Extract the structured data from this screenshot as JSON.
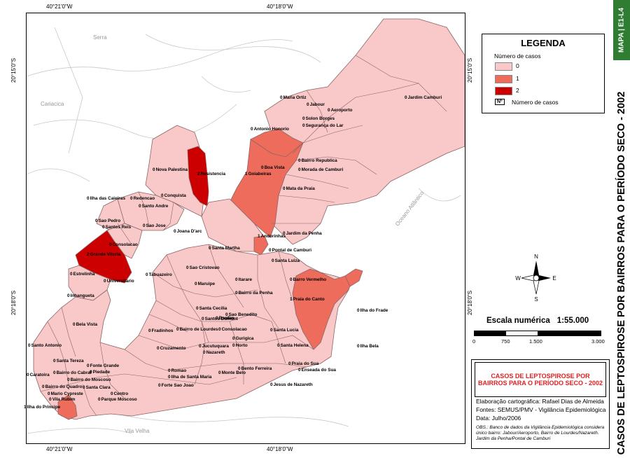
{
  "coords": {
    "top_left": "40°21'0\"W",
    "top_right": "40°18'0\"W",
    "bottom_left": "40°21'0\"W",
    "bottom_right": "40°18'0\"W",
    "left_top": "20°15'0\"S",
    "left_bottom": "20°18'0\"S",
    "right_top": "20°15'0\"S",
    "right_bottom": "20°18'0\"S"
  },
  "places": {
    "serra": "Serra",
    "cariacica": "Cariacica",
    "oceano": "Oceano Atlântico",
    "vila_velha": "Vila Velha"
  },
  "colors": {
    "zero": "#f9c9c9",
    "one": "#ee6c5c",
    "two": "#cc0000",
    "boundary": "#8a6464",
    "water": "#ffffff",
    "side_green": "#2e7d32"
  },
  "legend": {
    "title": "LEGENDA",
    "subtitle": "Número de casos",
    "items": [
      {
        "label": "0",
        "color": "#f9c9c9"
      },
      {
        "label": "1",
        "color": "#ee6c5c"
      },
      {
        "label": "2",
        "color": "#cc0000"
      }
    ],
    "box_symbol": "Nº",
    "box_label": "Número de casos"
  },
  "sidebar": {
    "code": "MAPA | E1-L4",
    "title": "CASOS DE LEPTOSPIROSE POR BAIRROS  PARA O PERÍODO SECO  - 2002"
  },
  "scale": {
    "label": "Escala numérica",
    "value": "1:55.000",
    "ticks": [
      "0",
      "750",
      "1.500",
      "3.000"
    ]
  },
  "title_box": {
    "line1": "CASOS DE LEPTOSPIROSE POR",
    "line2": "BAIRROS PARA O PERÍODO SECO - 2002",
    "credit": "Elaboração cartográfica: Rafael Dias de Almeida",
    "sources": "Fontes: SEMUS/PMV - Vigilância Epidemiológica",
    "date": "Data: Julho/2006",
    "obs": "OBS.: Banco de dados da Vigilância Epidemiológica considera único bairro: Jabour/Aeroporto, Bairro de Lourdes/Nazareth. Jardim da Penha/Pontal de Camburi"
  },
  "neighborhoods": [
    {
      "name": "Maria Ortiz",
      "count": "0"
    },
    {
      "name": "Jabour",
      "count": "0"
    },
    {
      "name": "Aeroporto",
      "count": "0"
    },
    {
      "name": "Jardim Camburi",
      "count": "0"
    },
    {
      "name": "Solon Borges",
      "count": "0"
    },
    {
      "name": "Segurança do Lar",
      "count": "0"
    },
    {
      "name": "Antonio Honorio",
      "count": "0"
    },
    {
      "name": "Bairro Republica",
      "count": "0"
    },
    {
      "name": "Boa Vista",
      "count": "0"
    },
    {
      "name": "Morada de Camburi",
      "count": "0"
    },
    {
      "name": "Goiabeiras",
      "count": "1"
    },
    {
      "name": "Resistencia",
      "count": "2"
    },
    {
      "name": "Nova Palestina",
      "count": "0"
    },
    {
      "name": "Mata da Praia",
      "count": "0"
    },
    {
      "name": "Ilha das Caieiras",
      "count": "0"
    },
    {
      "name": "Redencao",
      "count": "0"
    },
    {
      "name": "Conquista",
      "count": "0"
    },
    {
      "name": "Santo Andre",
      "count": "0"
    },
    {
      "name": "Sao Pedro",
      "count": "0"
    },
    {
      "name": "Santos Reis",
      "count": "0"
    },
    {
      "name": "Sao Jose",
      "count": "0"
    },
    {
      "name": "Joana D'arc",
      "count": "0"
    },
    {
      "name": "Jardim da Penha",
      "count": "0"
    },
    {
      "name": "Andorinhas",
      "count": "1"
    },
    {
      "name": "Pontal de Camburi",
      "count": "0"
    },
    {
      "name": "Santa Martha",
      "count": "0"
    },
    {
      "name": "Grande Vitoria",
      "count": "2"
    },
    {
      "name": "Consolacao",
      "count": "0"
    },
    {
      "name": "Santa Luiza",
      "count": "0"
    },
    {
      "name": "Estrelinha",
      "count": "0"
    },
    {
      "name": "Universitario",
      "count": "0"
    },
    {
      "name": "Sao Cristovao",
      "count": "0"
    },
    {
      "name": "Tabuazeiro",
      "count": "0"
    },
    {
      "name": "Maruipe",
      "count": "0"
    },
    {
      "name": "Itarare",
      "count": "0"
    },
    {
      "name": "Barro Vermelho",
      "count": "0"
    },
    {
      "name": "Bairro da Penha",
      "count": "0"
    },
    {
      "name": "Inhangueta",
      "count": "0"
    },
    {
      "name": "Praia do Canto",
      "count": "1"
    },
    {
      "name": "Ilha do Frade",
      "count": "0"
    },
    {
      "name": "Santa Cecilia",
      "count": "0"
    },
    {
      "name": "Bonfim",
      "count": "0"
    },
    {
      "name": "Sao Benedito",
      "count": "0"
    },
    {
      "name": "Santos Dumont",
      "count": "0"
    },
    {
      "name": "Bela Vista",
      "count": "0"
    },
    {
      "name": "Fradinhos",
      "count": "0"
    },
    {
      "name": "Bairro de Lourdes",
      "count": "0"
    },
    {
      "name": "Consolacao",
      "count": "0"
    },
    {
      "name": "Gurigica",
      "count": "0"
    },
    {
      "name": "Santa Lucia",
      "count": "0"
    },
    {
      "name": "Santo Antonio",
      "count": "0"
    },
    {
      "name": "Cruzamento",
      "count": "0"
    },
    {
      "name": "Jucutuquara",
      "count": "0"
    },
    {
      "name": "Horto",
      "count": "0"
    },
    {
      "name": "Nazareth",
      "count": "0"
    },
    {
      "name": "Santa Helena",
      "count": "0"
    },
    {
      "name": "Ilha Bela",
      "count": "0"
    },
    {
      "name": "Santa Tereza",
      "count": "0"
    },
    {
      "name": "Fonte Grande",
      "count": "0"
    },
    {
      "name": "Caratoira",
      "count": "0"
    },
    {
      "name": "Piedade",
      "count": "0"
    },
    {
      "name": "Bairro do Cabral",
      "count": "0"
    },
    {
      "name": "Bairro do Moscoso",
      "count": "0"
    },
    {
      "name": "Romao",
      "count": "0"
    },
    {
      "name": "Ilha de Santa Maria",
      "count": "0"
    },
    {
      "name": "Monte Belo",
      "count": "0"
    },
    {
      "name": "Bento Ferreira",
      "count": "0"
    },
    {
      "name": "Praia do Sua",
      "count": "0"
    },
    {
      "name": "Enseada do Sua",
      "count": "0"
    },
    {
      "name": "Bairro do Quadro",
      "count": "0"
    },
    {
      "name": "Santa Clara",
      "count": "0"
    },
    {
      "name": "Mario Cypreste",
      "count": "0"
    },
    {
      "name": "Vila Rubim",
      "count": "0"
    },
    {
      "name": "Centro",
      "count": "0"
    },
    {
      "name": "Parque Moscoso",
      "count": "0"
    },
    {
      "name": "Forte Sao Joao",
      "count": "0"
    },
    {
      "name": "Jesus de Nazareth",
      "count": "0"
    },
    {
      "name": "Ilha do Principe",
      "count": "1"
    }
  ]
}
